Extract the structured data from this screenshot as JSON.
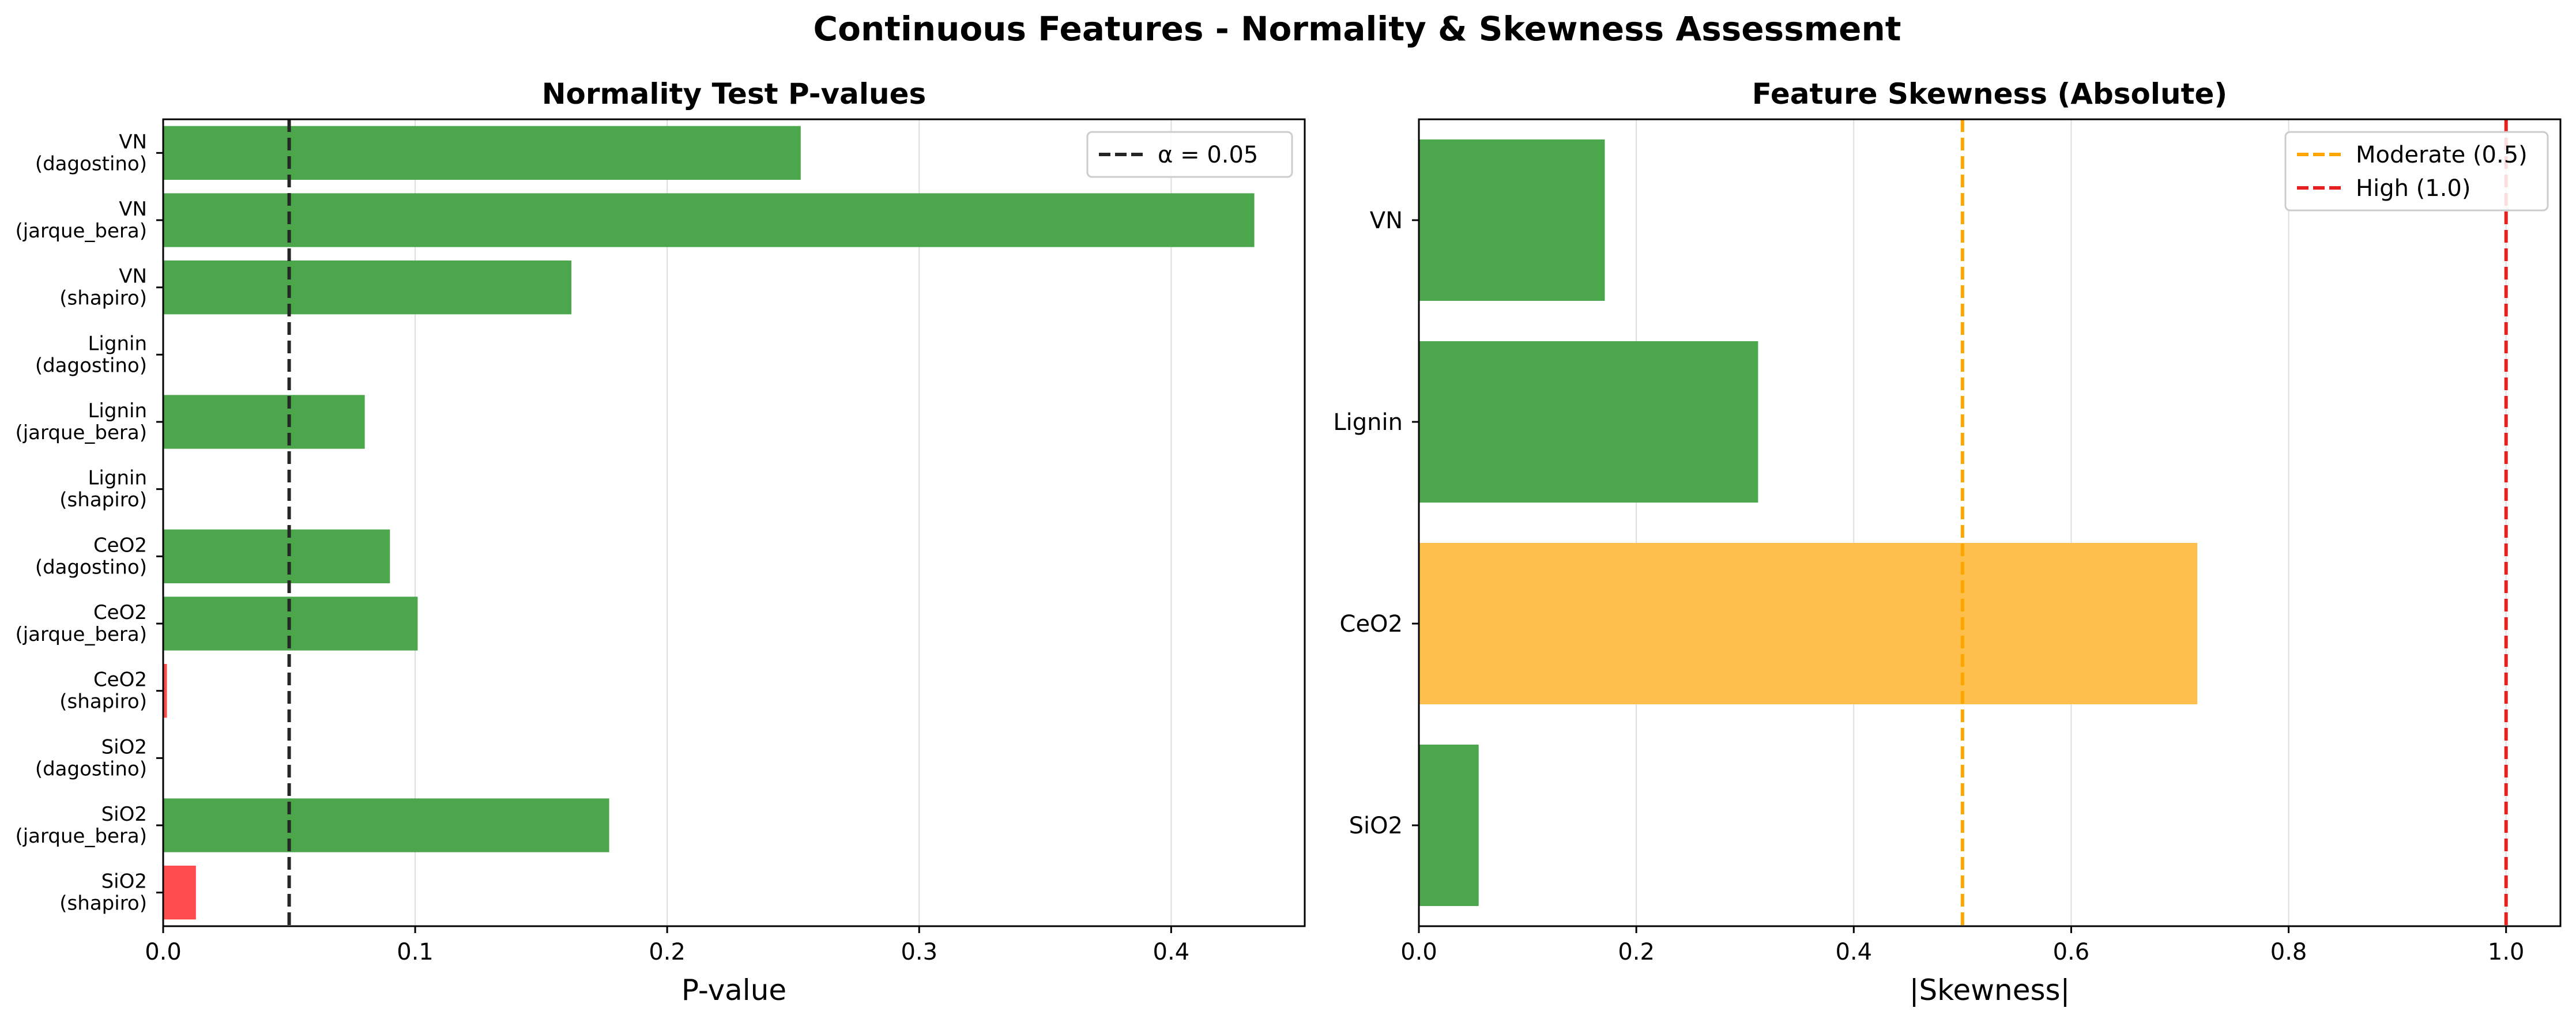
{
  "figure": {
    "title": "Continuous Features - Normality & Skewness Assessment"
  },
  "chart_data": [
    {
      "type": "bar",
      "orientation": "horizontal",
      "title": "Normality Test P-values",
      "xlabel": "P-value",
      "ylabel": "",
      "xlim": [
        0,
        0.453
      ],
      "xticks": [
        "0.0",
        "0.1",
        "0.2",
        "0.3",
        "0.4"
      ],
      "grid": "x",
      "categories": [
        [
          "VN",
          "(dagostino)"
        ],
        [
          "VN",
          "(jarque_bera)"
        ],
        [
          "VN",
          "(shapiro)"
        ],
        [
          "Lignin",
          "(dagostino)"
        ],
        [
          "Lignin",
          "(jarque_bera)"
        ],
        [
          "Lignin",
          "(shapiro)"
        ],
        [
          "CeO2",
          "(dagostino)"
        ],
        [
          "CeO2",
          "(jarque_bera)"
        ],
        [
          "CeO2",
          "(shapiro)"
        ],
        [
          "SiO2",
          "(dagostino)"
        ],
        [
          "SiO2",
          "(jarque_bera)"
        ],
        [
          "SiO2",
          "(shapiro)"
        ]
      ],
      "values": [
        0.253,
        0.433,
        0.162,
        0.0,
        0.08,
        0.0,
        0.09,
        0.101,
        0.0015,
        0.0,
        0.177,
        0.013
      ],
      "bar_colors": [
        "#4ca64c",
        "#4ca64c",
        "#4ca64c",
        "#4ca64c",
        "#4ca64c",
        "#4ca64c",
        "#4ca64c",
        "#4ca64c",
        "#ff4d4d",
        "#4ca64c",
        "#4ca64c",
        "#ff4d4d"
      ],
      "reference_lines": [
        {
          "value": 0.05,
          "label": "α = 0.05",
          "color": "#262626",
          "style": "dashed"
        }
      ],
      "legend": {
        "placement": "top-right"
      }
    },
    {
      "type": "bar",
      "orientation": "horizontal",
      "title": "Feature Skewness (Absolute)",
      "xlabel": "|Skewness|",
      "ylabel": "",
      "xlim": [
        0,
        1.05
      ],
      "xticks": [
        "0.0",
        "0.2",
        "0.4",
        "0.6",
        "0.8",
        "1.0"
      ],
      "grid": "x",
      "categories": [
        "VN",
        "Lignin",
        "CeO2",
        "SiO2"
      ],
      "values": [
        0.171,
        0.312,
        0.716,
        0.055
      ],
      "bar_colors": [
        "#4ca64c",
        "#4ca64c",
        "#ffbf4d",
        "#4ca64c"
      ],
      "reference_lines": [
        {
          "value": 0.5,
          "label": "Moderate (0.5)",
          "color": "#ffa500",
          "style": "dashed"
        },
        {
          "value": 1.0,
          "label": "High (1.0)",
          "color": "#e62020",
          "style": "dashed"
        }
      ],
      "legend": {
        "placement": "top-right"
      }
    }
  ]
}
